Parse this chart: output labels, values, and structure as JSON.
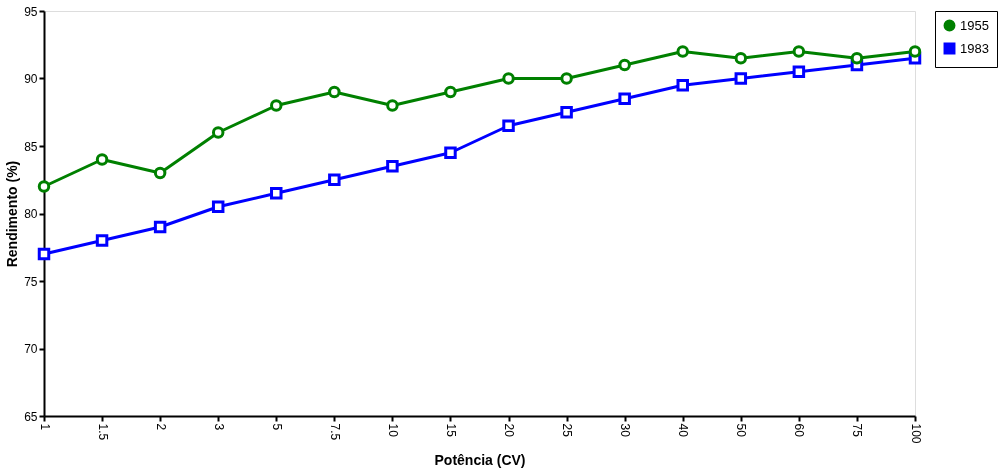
{
  "chart_data": {
    "type": "line",
    "xlabel": "Potência (CV)",
    "ylabel": "Rendimento (%)",
    "categories": [
      "1",
      "1.5",
      "2",
      "3",
      "5",
      "7.5",
      "10",
      "15",
      "20",
      "25",
      "30",
      "40",
      "50",
      "60",
      "75",
      "100"
    ],
    "series": [
      {
        "name": "1955",
        "color": "#008000",
        "marker": "circle",
        "values": [
          82,
          84,
          83,
          86,
          88,
          89,
          88,
          89,
          90,
          90,
          91,
          92,
          91.5,
          92,
          91.5,
          92
        ]
      },
      {
        "name": "1983",
        "color": "#0000ff",
        "marker": "square",
        "values": [
          77,
          78,
          79,
          80.5,
          81.5,
          82.5,
          83.5,
          84.5,
          86.5,
          87.5,
          88.5,
          89.5,
          90,
          90.5,
          91,
          91.5
        ]
      }
    ],
    "ylim": [
      65,
      95
    ],
    "yticks": [
      65,
      70,
      75,
      80,
      85,
      90,
      95
    ],
    "grid": false,
    "legend": "right",
    "line_style": "solid"
  }
}
